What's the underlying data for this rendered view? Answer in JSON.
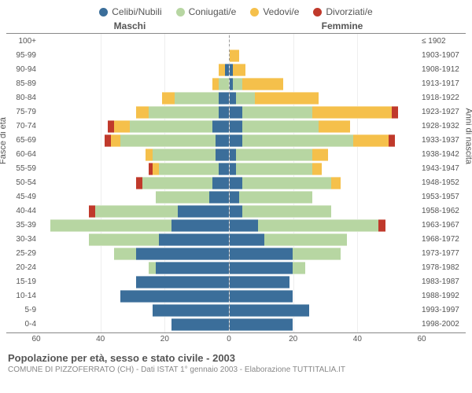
{
  "legend": {
    "items": [
      {
        "label": "Celibi/Nubili",
        "color": "#3b6e9a"
      },
      {
        "label": "Coniugati/e",
        "color": "#b7d6a2"
      },
      {
        "label": "Vedovi/e",
        "color": "#f5c04b"
      },
      {
        "label": "Divorziati/e",
        "color": "#c0392b"
      }
    ]
  },
  "headers": {
    "male": "Maschi",
    "female": "Femmine"
  },
  "axis": {
    "y_left_title": "Fasce di età",
    "y_right_title": "Anni di nascita",
    "max": 60,
    "ticks": [
      60,
      40,
      20,
      0,
      20,
      40,
      60
    ]
  },
  "colors": {
    "single": "#3b6e9a",
    "married": "#b7d6a2",
    "widowed": "#f5c04b",
    "divorced": "#c0392b",
    "grid": "#eeeeee",
    "border": "#888888"
  },
  "title": "Popolazione per età, sesso e stato civile - 2003",
  "subtitle": "COMUNE DI PIZZOFERRATO (CH) - Dati ISTAT 1° gennaio 2003 - Elaborazione TUTTITALIA.IT",
  "rows": [
    {
      "age": "100+",
      "birth": "≤ 1902",
      "m": {
        "s": 0,
        "c": 0,
        "w": 0,
        "d": 0
      },
      "f": {
        "s": 0,
        "c": 0,
        "w": 0,
        "d": 0
      }
    },
    {
      "age": "95-99",
      "birth": "1903-1907",
      "m": {
        "s": 0,
        "c": 0,
        "w": 0,
        "d": 0
      },
      "f": {
        "s": 0,
        "c": 0,
        "w": 3,
        "d": 0
      }
    },
    {
      "age": "90-94",
      "birth": "1908-1912",
      "m": {
        "s": 1,
        "c": 0,
        "w": 2,
        "d": 0
      },
      "f": {
        "s": 1,
        "c": 0,
        "w": 4,
        "d": 0
      }
    },
    {
      "age": "85-89",
      "birth": "1913-1917",
      "m": {
        "s": 0,
        "c": 3,
        "w": 2,
        "d": 0
      },
      "f": {
        "s": 1,
        "c": 3,
        "w": 13,
        "d": 0
      }
    },
    {
      "age": "80-84",
      "birth": "1918-1922",
      "m": {
        "s": 3,
        "c": 14,
        "w": 4,
        "d": 0
      },
      "f": {
        "s": 2,
        "c": 6,
        "w": 20,
        "d": 0
      }
    },
    {
      "age": "75-79",
      "birth": "1923-1927",
      "m": {
        "s": 3,
        "c": 22,
        "w": 4,
        "d": 0
      },
      "f": {
        "s": 4,
        "c": 22,
        "w": 25,
        "d": 2
      }
    },
    {
      "age": "70-74",
      "birth": "1928-1932",
      "m": {
        "s": 5,
        "c": 26,
        "w": 5,
        "d": 2
      },
      "f": {
        "s": 4,
        "c": 24,
        "w": 10,
        "d": 0
      }
    },
    {
      "age": "65-69",
      "birth": "1933-1937",
      "m": {
        "s": 4,
        "c": 30,
        "w": 3,
        "d": 2
      },
      "f": {
        "s": 4,
        "c": 35,
        "w": 11,
        "d": 2
      }
    },
    {
      "age": "60-64",
      "birth": "1938-1942",
      "m": {
        "s": 4,
        "c": 20,
        "w": 2,
        "d": 0
      },
      "f": {
        "s": 2,
        "c": 24,
        "w": 5,
        "d": 0
      }
    },
    {
      "age": "55-59",
      "birth": "1943-1947",
      "m": {
        "s": 3,
        "c": 19,
        "w": 2,
        "d": 1
      },
      "f": {
        "s": 2,
        "c": 24,
        "w": 3,
        "d": 0
      }
    },
    {
      "age": "50-54",
      "birth": "1948-1952",
      "m": {
        "s": 5,
        "c": 22,
        "w": 0,
        "d": 2
      },
      "f": {
        "s": 4,
        "c": 28,
        "w": 3,
        "d": 0
      }
    },
    {
      "age": "45-49",
      "birth": "1953-1957",
      "m": {
        "s": 6,
        "c": 17,
        "w": 0,
        "d": 0
      },
      "f": {
        "s": 3,
        "c": 23,
        "w": 0,
        "d": 0
      }
    },
    {
      "age": "40-44",
      "birth": "1958-1962",
      "m": {
        "s": 16,
        "c": 26,
        "w": 0,
        "d": 2
      },
      "f": {
        "s": 4,
        "c": 28,
        "w": 0,
        "d": 0
      }
    },
    {
      "age": "35-39",
      "birth": "1963-1967",
      "m": {
        "s": 18,
        "c": 38,
        "w": 0,
        "d": 0
      },
      "f": {
        "s": 9,
        "c": 38,
        "w": 0,
        "d": 2
      }
    },
    {
      "age": "30-34",
      "birth": "1968-1972",
      "m": {
        "s": 22,
        "c": 22,
        "w": 0,
        "d": 0
      },
      "f": {
        "s": 11,
        "c": 26,
        "w": 0,
        "d": 0
      }
    },
    {
      "age": "25-29",
      "birth": "1973-1977",
      "m": {
        "s": 29,
        "c": 7,
        "w": 0,
        "d": 0
      },
      "f": {
        "s": 20,
        "c": 15,
        "w": 0,
        "d": 0
      }
    },
    {
      "age": "20-24",
      "birth": "1978-1982",
      "m": {
        "s": 23,
        "c": 2,
        "w": 0,
        "d": 0
      },
      "f": {
        "s": 20,
        "c": 4,
        "w": 0,
        "d": 0
      }
    },
    {
      "age": "15-19",
      "birth": "1983-1987",
      "m": {
        "s": 29,
        "c": 0,
        "w": 0,
        "d": 0
      },
      "f": {
        "s": 19,
        "c": 0,
        "w": 0,
        "d": 0
      }
    },
    {
      "age": "10-14",
      "birth": "1988-1992",
      "m": {
        "s": 34,
        "c": 0,
        "w": 0,
        "d": 0
      },
      "f": {
        "s": 20,
        "c": 0,
        "w": 0,
        "d": 0
      }
    },
    {
      "age": "5-9",
      "birth": "1993-1997",
      "m": {
        "s": 24,
        "c": 0,
        "w": 0,
        "d": 0
      },
      "f": {
        "s": 25,
        "c": 0,
        "w": 0,
        "d": 0
      }
    },
    {
      "age": "0-4",
      "birth": "1998-2002",
      "m": {
        "s": 18,
        "c": 0,
        "w": 0,
        "d": 0
      },
      "f": {
        "s": 20,
        "c": 0,
        "w": 0,
        "d": 0
      }
    }
  ]
}
